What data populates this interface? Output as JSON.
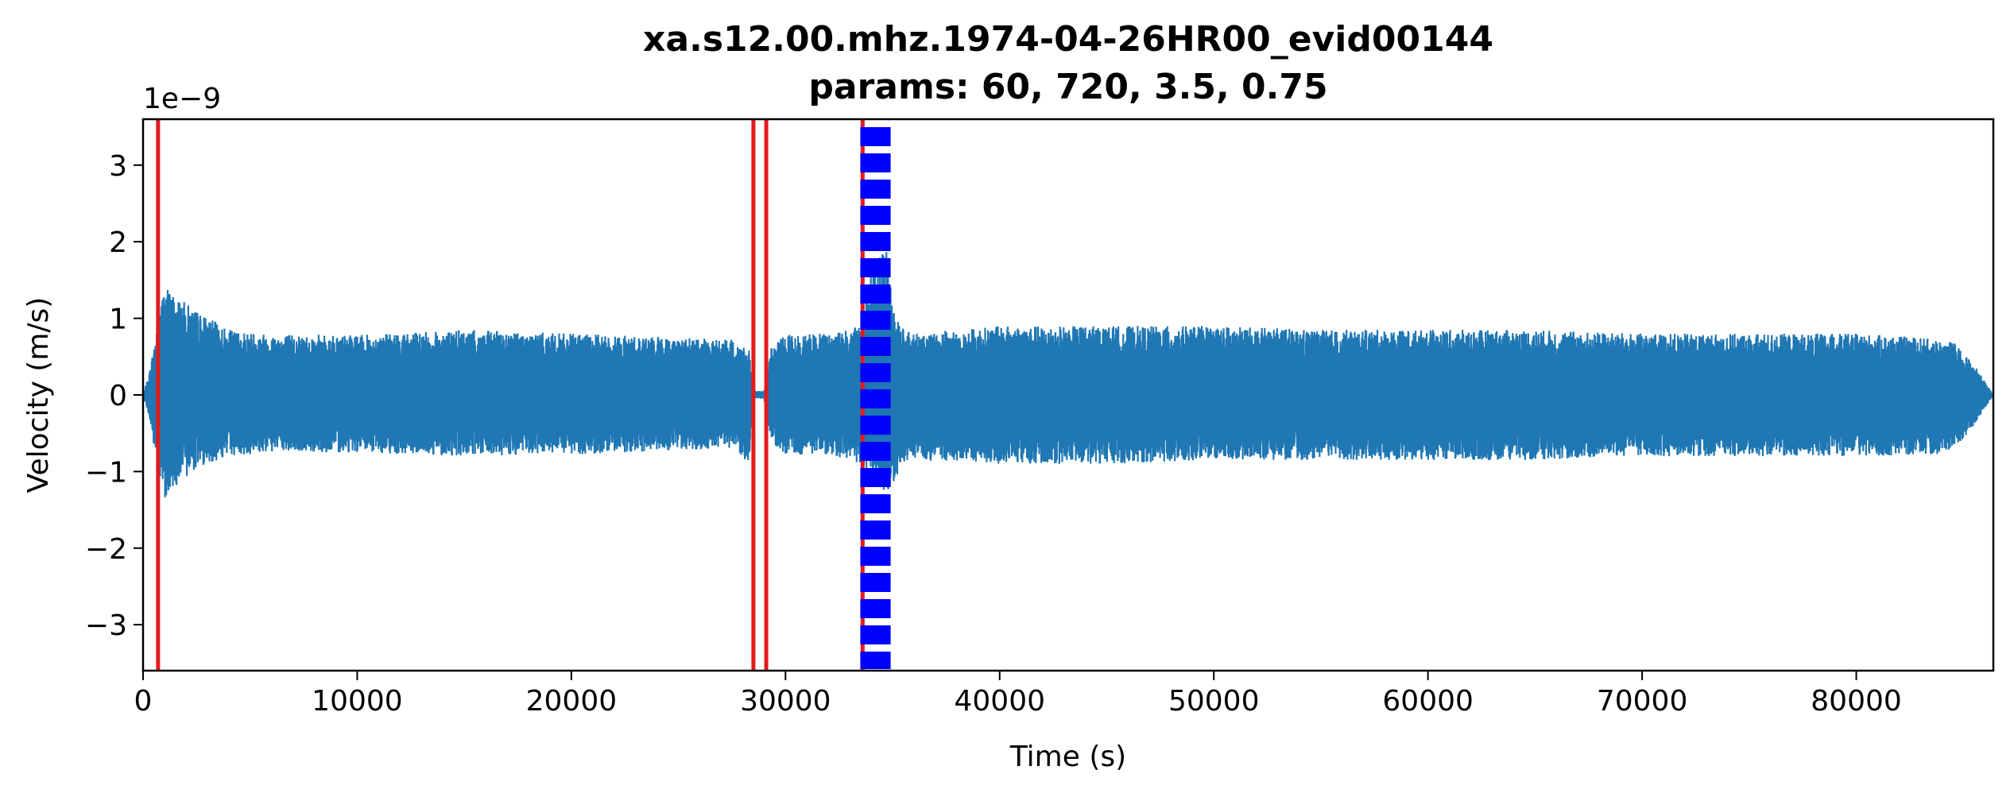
{
  "chart_data": {
    "type": "line",
    "title": "xa.s12.00.mhz.1974-04-26HR00_evid00144",
    "subtitle": "params: 60, 720, 3.5, 0.75",
    "xlabel": "Time (s)",
    "ylabel": "Velocity (m/s)",
    "y_offset_text": "1e−9",
    "xlim": [
      0,
      86400
    ],
    "ylim": [
      -3.6,
      3.6
    ],
    "y_unit_scale": 1e-09,
    "x_ticks": [
      0,
      10000,
      20000,
      30000,
      40000,
      50000,
      60000,
      70000,
      80000
    ],
    "x_tick_labels": [
      "0",
      "10000",
      "20000",
      "30000",
      "40000",
      "50000",
      "60000",
      "70000",
      "80000"
    ],
    "y_ticks": [
      -3,
      -2,
      -1,
      0,
      1,
      2,
      3
    ],
    "y_tick_labels": [
      "−3",
      "−2",
      "−1",
      "0",
      "1",
      "2",
      "3"
    ],
    "grid": false,
    "series": [
      {
        "color": "#1f77b4",
        "envelope_x": [
          0,
          300,
          700,
          1000,
          1500,
          2500,
          4000,
          6000,
          10000,
          15000,
          20000,
          25000,
          27500,
          28300,
          28500,
          29000,
          29300,
          30000,
          32000,
          33500,
          34000,
          34700,
          35000,
          35500,
          36000,
          40000,
          45000,
          50000,
          55000,
          60000,
          65000,
          70000,
          75000,
          80000,
          83000,
          84500,
          85500,
          86400
        ],
        "envelope_upper": [
          0.0,
          0.3,
          1.0,
          1.45,
          1.3,
          1.1,
          0.85,
          0.8,
          0.78,
          0.85,
          0.8,
          0.75,
          0.72,
          0.6,
          0.05,
          0.05,
          0.6,
          0.8,
          0.8,
          0.9,
          1.7,
          1.9,
          1.2,
          0.9,
          0.8,
          0.9,
          0.9,
          0.9,
          0.85,
          0.85,
          0.85,
          0.8,
          0.8,
          0.8,
          0.75,
          0.7,
          0.4,
          0.0
        ],
        "envelope_lower": [
          0.0,
          -0.3,
          -1.1,
          -1.35,
          -1.2,
          -0.95,
          -0.8,
          -0.75,
          -0.75,
          -0.8,
          -0.78,
          -0.72,
          -0.7,
          -0.9,
          -0.05,
          -0.05,
          -0.6,
          -0.78,
          -0.78,
          -0.9,
          -1.1,
          -1.3,
          -1.2,
          -0.9,
          -0.85,
          -0.9,
          -0.9,
          -0.85,
          -0.85,
          -0.85,
          -0.85,
          -0.8,
          -0.8,
          -0.8,
          -0.8,
          -0.75,
          -0.4,
          0.0
        ]
      }
    ],
    "vertical_lines_red": [
      700,
      28500,
      29100,
      33600
    ],
    "vertical_segments_blue_dashed": [
      {
        "x": 33900,
        "dash": "thick"
      },
      {
        "x": 34500,
        "dash": "thick"
      }
    ],
    "colors": {
      "signal": "#1f77b4",
      "trigger_on": "#e41a1c",
      "detection": "#0000ff"
    }
  }
}
